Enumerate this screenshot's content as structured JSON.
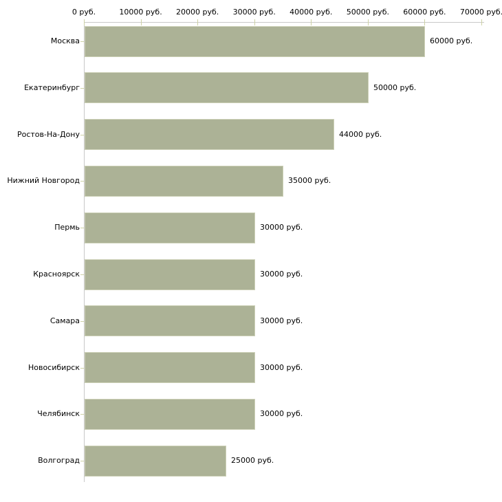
{
  "chart_data": {
    "type": "bar",
    "orientation": "horizontal",
    "categories": [
      "Москва",
      "Екатеринбург",
      "Ростов-На-Дону",
      "Нижний Новгород",
      "Пермь",
      "Красноярск",
      "Самара",
      "Новосибирск",
      "Челябинск",
      "Волгоград"
    ],
    "values": [
      60000,
      50000,
      44000,
      35000,
      30000,
      30000,
      30000,
      30000,
      30000,
      25000
    ],
    "value_labels": [
      "60000 руб.",
      "50000 руб.",
      "44000 руб.",
      "35000 руб.",
      "30000 руб.",
      "30000 руб.",
      "30000 руб.",
      "30000 руб.",
      "30000 руб.",
      "25000 руб."
    ],
    "x_axis": {
      "position": "top",
      "min": 0,
      "max": 70000,
      "tick_values": [
        0,
        10000,
        20000,
        30000,
        40000,
        50000,
        60000,
        70000
      ],
      "tick_labels": [
        "0 руб.",
        "10000 руб.",
        "20000 руб.",
        "30000 руб.",
        "40000 руб.",
        "50000 руб.",
        "60000 руб.",
        "70000 руб."
      ]
    },
    "grid": false,
    "legend": false,
    "colors": {
      "bar": "#acb296",
      "axis_line": "#c8c8c8",
      "tick": "#ced2a5",
      "text": "#000000",
      "background": "#ffffff"
    }
  }
}
